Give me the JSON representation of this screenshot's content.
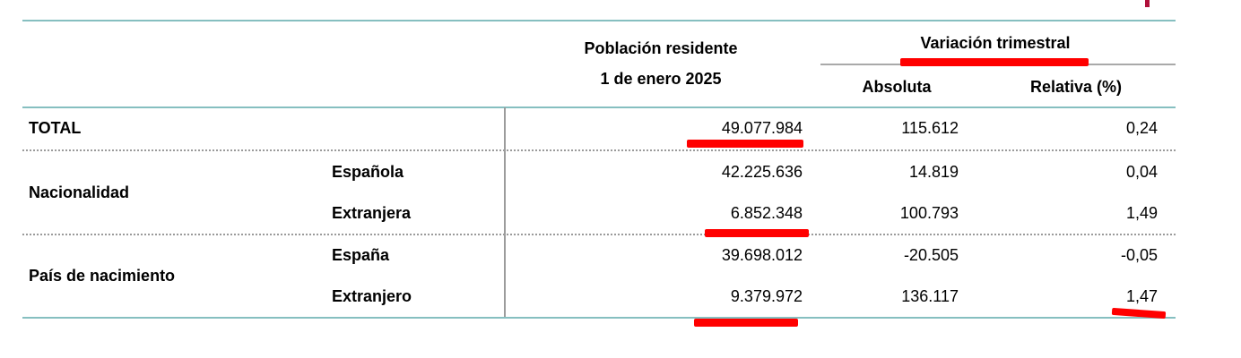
{
  "header": {
    "col1_line1": "Población residente",
    "col1_line2": "1 de enero 2025",
    "group_label": "Variación trimestral",
    "sub_absoluta": "Absoluta",
    "sub_relativa": "Relativa (%)"
  },
  "rows": [
    {
      "group": "TOTAL",
      "label": "",
      "poblacion": "49.077.984",
      "absoluta": "115.612",
      "relativa": "0,24"
    },
    {
      "group": "Nacionalidad",
      "label": "Española",
      "poblacion": "42.225.636",
      "absoluta": "14.819",
      "relativa": "0,04"
    },
    {
      "group": "",
      "label": "Extranjera",
      "poblacion": "6.852.348",
      "absoluta": "100.793",
      "relativa": "1,49"
    },
    {
      "group": "País de nacimiento",
      "label": "España",
      "poblacion": "39.698.012",
      "absoluta": "-20.505",
      "relativa": "-0,05"
    },
    {
      "group": "",
      "label": "Extranjero",
      "poblacion": "9.379.972",
      "absoluta": "136.117",
      "relativa": "1,47"
    }
  ],
  "groups": {
    "total": "TOTAL",
    "nacionalidad": "Nacionalidad",
    "pais": "País de nacimiento"
  },
  "colors": {
    "rule": "#86bfc0",
    "highlight": "#ff0000",
    "brand": "#b0103a"
  }
}
